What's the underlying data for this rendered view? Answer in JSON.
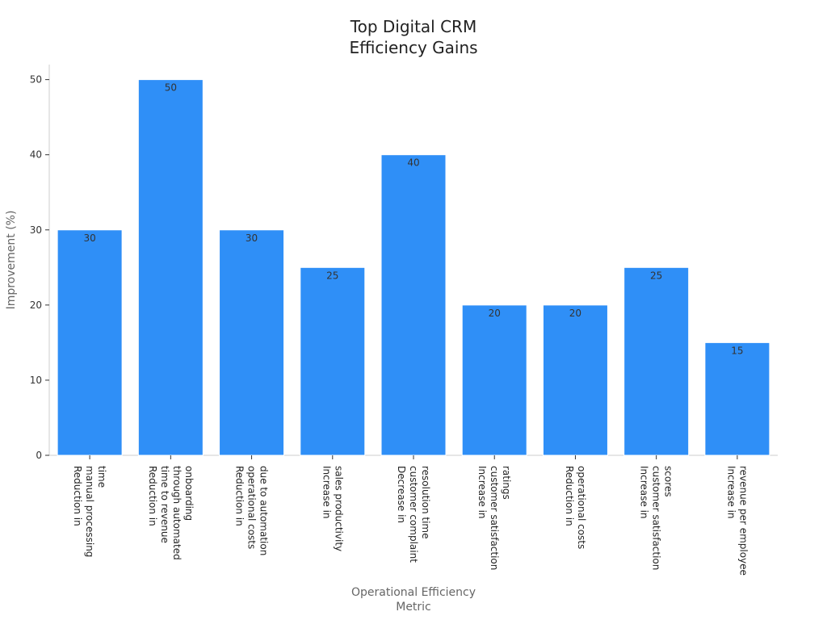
{
  "chart_data": {
    "type": "bar",
    "title_lines": [
      "Top Digital CRM",
      "Efficiency Gains"
    ],
    "xlabel_lines": [
      "Operational Efficiency",
      "Metric"
    ],
    "ylabel": "Improvement (%)",
    "ylim": [
      0,
      52
    ],
    "yticks": [
      0,
      10,
      20,
      30,
      40,
      50
    ],
    "grid": false,
    "legend": "none",
    "bar_color": "#2f8ff7",
    "categories": [
      [
        "Reduction in",
        "manual processing",
        "time"
      ],
      [
        "Reduction in",
        "time to revenue",
        "through automated",
        "onboarding"
      ],
      [
        "Reduction in",
        "operational costs",
        "due to automation"
      ],
      [
        "Increase in",
        "sales productivity"
      ],
      [
        "Decrease in",
        "customer complaint",
        "resolution time"
      ],
      [
        "Increase in",
        "customer satisfaction",
        "ratings"
      ],
      [
        "Reduction in",
        "operational costs"
      ],
      [
        "Increase in",
        "customer satisfaction",
        "scores"
      ],
      [
        "Increase in",
        "revenue per employee"
      ]
    ],
    "values": [
      30,
      50,
      30,
      25,
      40,
      20,
      20,
      25,
      15
    ]
  }
}
